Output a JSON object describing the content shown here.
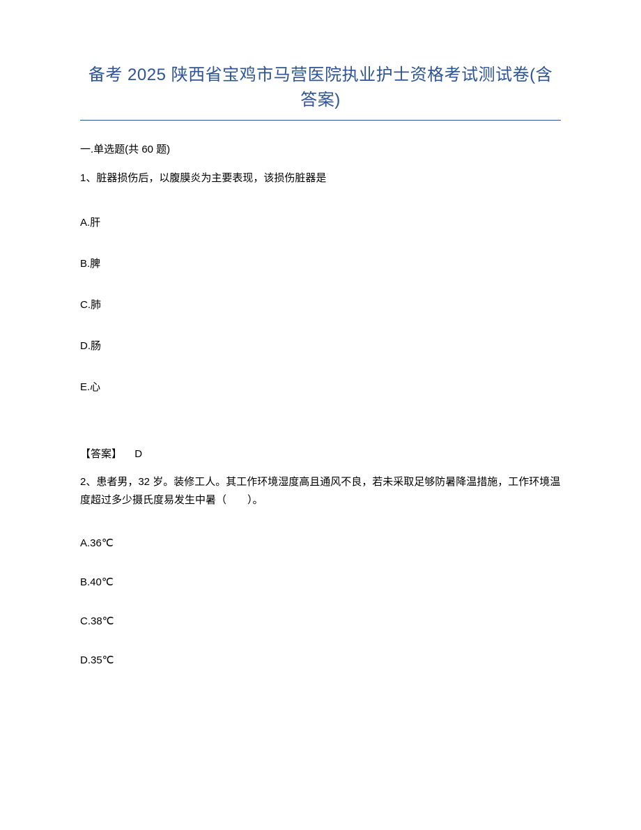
{
  "title": "备考 2025 陕西省宝鸡市马营医院执业护士资格考试测试卷(含答案)",
  "section": {
    "header": "一.单选题(共 60 题)"
  },
  "question1": {
    "text": "1、脏器损伤后，以腹膜炎为主要表现，该损伤脏器是",
    "options": {
      "a": "A.肝",
      "b": "B.脾",
      "c": "C.肺",
      "d": "D.肠",
      "e": "E.心"
    },
    "answer": {
      "label": "【答案】",
      "value": "D"
    }
  },
  "question2": {
    "text": "2、患者男，32 岁。装修工人。其工作环境湿度高且通风不良，若未采取足够防暑降温措施，工作环境温度超过多少摄氏度易发生中暑（　　）。",
    "options": {
      "a": "A.36℃",
      "b": "B.40℃",
      "c": "C.38℃",
      "d": "D.35℃"
    }
  },
  "colors": {
    "title_color": "#2e5496",
    "text_color": "#000000",
    "background_color": "#ffffff",
    "border_color": "#2e5496"
  },
  "typography": {
    "title_fontsize": 24,
    "body_fontsize": 15,
    "font_family": "Microsoft YaHei"
  }
}
